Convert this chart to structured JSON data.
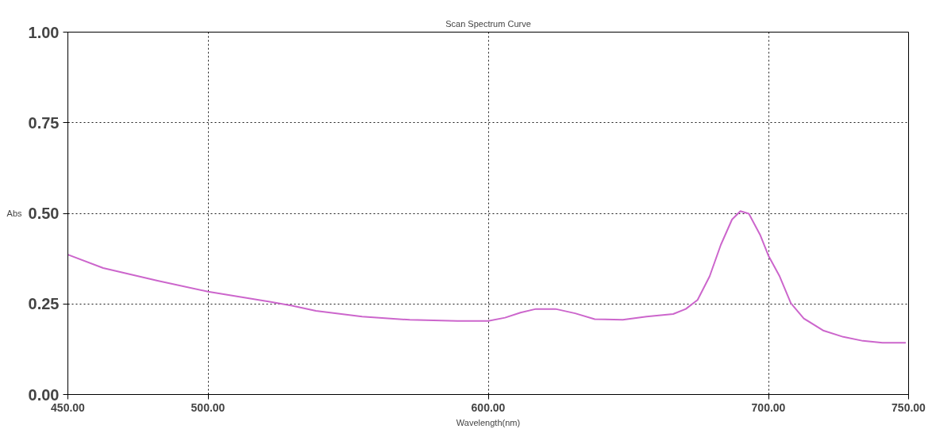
{
  "chart_data": {
    "type": "line",
    "title": "Scan Spectrum Curve",
    "xlabel": "Wavelength(nm)",
    "ylabel": "Abs",
    "x": [
      450,
      462.6,
      482,
      500,
      522,
      530,
      538.5,
      555,
      572,
      589,
      600,
      606,
      611.5,
      617,
      624,
      631,
      638,
      648,
      656.5,
      666,
      670.5,
      674.7,
      679,
      683,
      687,
      690,
      693,
      697,
      700,
      704,
      708,
      712.6,
      719.7,
      726.7,
      733.7,
      740.7,
      749
    ],
    "series": [
      {
        "color": "#cc66cc",
        "values": [
          0.386,
          0.349,
          0.314,
          0.284,
          0.256,
          0.245,
          0.231,
          0.215,
          0.206,
          0.203,
          0.203,
          0.212,
          0.226,
          0.236,
          0.236,
          0.224,
          0.208,
          0.206,
          0.215,
          0.222,
          0.236,
          0.261,
          0.326,
          0.413,
          0.483,
          0.506,
          0.499,
          0.441,
          0.383,
          0.326,
          0.252,
          0.21,
          0.176,
          0.159,
          0.148,
          0.143,
          0.143
        ]
      }
    ],
    "xlim": [
      450,
      750
    ],
    "ylim": [
      0,
      1
    ],
    "xticks": [
      {
        "value": 450,
        "label": "450.00"
      },
      {
        "value": 500,
        "label": "500.00"
      },
      {
        "value": 600,
        "label": "600.00"
      },
      {
        "value": 700,
        "label": "700.00"
      },
      {
        "value": 750,
        "label": "750.00"
      }
    ],
    "yticks": [
      {
        "value": 0,
        "label": "0.00"
      },
      {
        "value": 0.25,
        "label": "0.25"
      },
      {
        "value": 0.5,
        "label": "0.50"
      },
      {
        "value": 0.75,
        "label": "0.75"
      },
      {
        "value": 1,
        "label": "1.00"
      }
    ],
    "grid": true,
    "marker": "none",
    "line_style": "solid"
  }
}
